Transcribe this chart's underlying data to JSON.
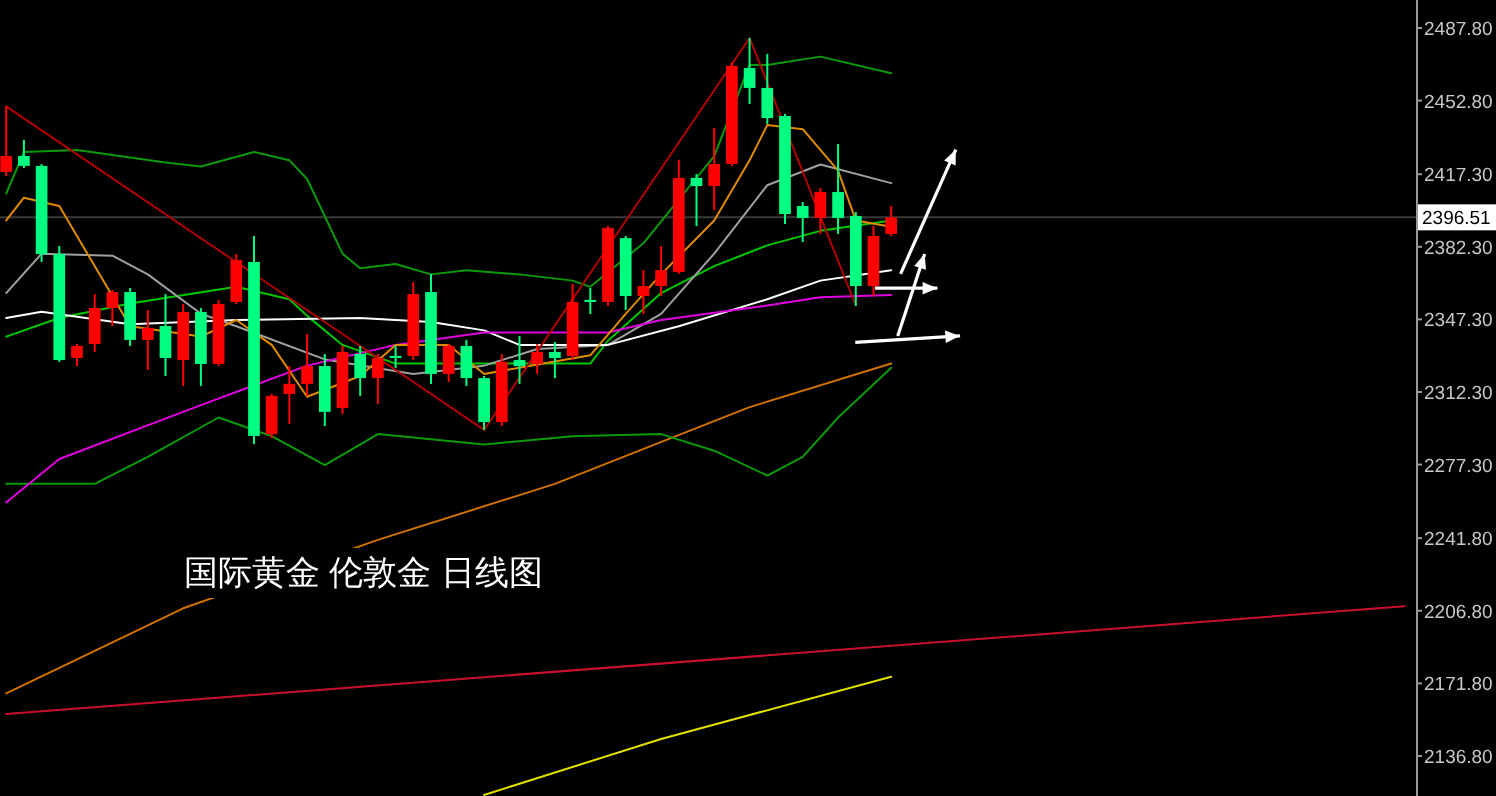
{
  "chart_data": {
    "type": "candlestick",
    "categories": [
      null,
      null,
      null,
      null,
      null,
      null,
      null,
      null,
      null,
      null,
      null,
      null,
      null,
      null,
      null,
      null,
      null,
      null,
      null,
      null,
      null,
      null,
      null,
      null,
      null,
      null,
      null,
      null,
      null,
      null,
      null,
      null,
      null,
      null,
      null,
      null,
      null,
      null,
      null,
      null,
      null,
      null,
      null,
      null,
      null,
      null,
      null,
      null,
      null,
      null,
      null,
      null,
      null,
      null,
      null,
      null,
      null,
      null,
      null,
      null,
      null,
      null,
      null,
      null,
      null,
      null,
      null,
      null,
      null,
      null,
      null,
      null,
      null,
      null,
      null,
      null,
      null,
      null,
      null,
      null
    ],
    "ohlc": [
      [
        2418.4,
        2450.2,
        2416.4,
        2426.1
      ],
      [
        2426.1,
        2433.8,
        2420.3,
        2421.3
      ],
      [
        2421.3,
        2422.2,
        2375.0,
        2378.8
      ],
      [
        2378.8,
        2382.7,
        2326.8,
        2327.7
      ],
      [
        2328.7,
        2335.5,
        2324.8,
        2334.5
      ],
      [
        2335.4,
        2359.5,
        2331.6,
        2352.8
      ],
      [
        2352.8,
        2361.5,
        2344.1,
        2360.5
      ],
      [
        2360.5,
        2362.4,
        2334.5,
        2337.4
      ],
      [
        2337.4,
        2351.8,
        2322.9,
        2343.2
      ],
      [
        2344.1,
        2359.5,
        2320.0,
        2328.7
      ],
      [
        2327.7,
        2354.7,
        2315.2,
        2350.9
      ],
      [
        2350.9,
        2352.8,
        2315.2,
        2325.8
      ],
      [
        2325.8,
        2356.7,
        2324.8,
        2354.7
      ],
      [
        2355.7,
        2378.8,
        2354.7,
        2375.9
      ],
      [
        2375.0,
        2387.5,
        2287.2,
        2291.1
      ],
      [
        2292.0,
        2311.4,
        2290.1,
        2310.4
      ],
      [
        2311.3,
        2324.8,
        2296.9,
        2316.2
      ],
      [
        2316.2,
        2340.3,
        2310.4,
        2324.8
      ],
      [
        2324.8,
        2330.6,
        2295.9,
        2302.7
      ],
      [
        2304.6,
        2334.5,
        2301.7,
        2331.6
      ],
      [
        2330.6,
        2334.5,
        2310.4,
        2319.0
      ],
      [
        2319.0,
        2330.6,
        2306.5,
        2328.7
      ],
      [
        2329.7,
        2334.5,
        2323.9,
        2328.7
      ],
      [
        2329.7,
        2365.3,
        2327.7,
        2359.5
      ],
      [
        2360.5,
        2369.2,
        2316.2,
        2321.0
      ],
      [
        2321.0,
        2335.5,
        2317.1,
        2334.5
      ],
      [
        2334.5,
        2337.4,
        2315.2,
        2319.0
      ],
      [
        2319.0,
        2320.0,
        2294.0,
        2297.8
      ],
      [
        2297.8,
        2330.6,
        2295.9,
        2326.8
      ],
      [
        2327.7,
        2339.3,
        2316.2,
        2324.8
      ],
      [
        2325.8,
        2335.4,
        2321.0,
        2331.6
      ],
      [
        2331.6,
        2336.4,
        2319.0,
        2328.7
      ],
      [
        2329.7,
        2364.4,
        2327.7,
        2355.7
      ],
      [
        2356.7,
        2362.4,
        2349.9,
        2355.7
      ],
      [
        2355.7,
        2392.3,
        2353.8,
        2391.4
      ],
      [
        2386.5,
        2387.5,
        2351.8,
        2358.6
      ],
      [
        2358.6,
        2371.1,
        2349.9,
        2363.4
      ],
      [
        2363.4,
        2382.7,
        2358.6,
        2371.1
      ],
      [
        2370.2,
        2424.2,
        2369.2,
        2415.5
      ],
      [
        2415.5,
        2417.4,
        2392.3,
        2411.6
      ],
      [
        2411.6,
        2439.6,
        2400.0,
        2422.2
      ],
      [
        2422.2,
        2471.4,
        2421.3,
        2469.5
      ],
      [
        2468.5,
        2483.0,
        2451.2,
        2458.9
      ],
      [
        2458.9,
        2475.3,
        2441.5,
        2444.4
      ],
      [
        2445.4,
        2446.4,
        2393.3,
        2398.1
      ],
      [
        2402.0,
        2403.9,
        2384.6,
        2396.2
      ],
      [
        2396.2,
        2410.7,
        2388.5,
        2408.7
      ],
      [
        2408.7,
        2431.9,
        2388.5,
        2396.2
      ],
      [
        2397.2,
        2399.1,
        2353.8,
        2363.4
      ],
      [
        2363.4,
        2392.3,
        2358.6,
        2387.5
      ],
      [
        2388.5,
        2402.0,
        2387.5,
        2396.5
      ],
      null,
      null,
      null,
      null,
      null,
      null,
      null,
      null,
      null,
      null,
      null,
      null,
      null,
      null,
      null,
      null,
      null,
      null,
      null,
      null,
      null,
      null,
      null,
      null,
      null,
      null,
      null,
      null,
      null
    ],
    "colors": [
      "#ff0000",
      "#00ff80",
      "#00ff80",
      "#00ff80",
      "#ff0000",
      "#ff0000",
      "#ff0000",
      "#00ff80",
      "#ff0000",
      "#00ff80",
      "#ff0000",
      "#00ff80",
      "#ff0000",
      "#ff0000",
      "#00ff80",
      "#ff0000",
      "#ff0000",
      "#ff0000",
      "#00ff80",
      "#ff0000",
      "#00ff80",
      "#ff0000",
      "#00ff80",
      "#ff0000",
      "#00ff80",
      "#ff0000",
      "#00ff80",
      "#00ff80",
      "#ff0000",
      "#00ff80",
      "#ff0000",
      "#00ff80",
      "#ff0000",
      "#00ff80",
      "#ff0000",
      "#00ff80",
      "#ff0000",
      "#ff0000",
      "#ff0000",
      "#00ff80",
      "#ff0000",
      "#ff0000",
      "#00ff80",
      "#00ff80",
      "#00ff80",
      "#00ff80",
      "#ff0000",
      "#00ff80",
      "#00ff80",
      "#ff0000",
      "#ff0000",
      null,
      null,
      null,
      null,
      null,
      null,
      null,
      null,
      null,
      null,
      null,
      null,
      null,
      null,
      null,
      null,
      null,
      null,
      null,
      null,
      null,
      null,
      null,
      null,
      null,
      null,
      null,
      null,
      null
    ],
    "series": [
      {
        "type": "line",
        "color": "#c8102e",
        "values": [
          2157,
          null,
          null,
          null,
          null,
          null,
          null,
          null,
          null,
          null,
          null,
          null,
          null,
          null,
          null,
          null,
          null,
          null,
          null,
          null,
          null,
          null,
          null,
          null,
          null,
          null,
          null,
          null,
          null,
          null,
          null,
          null,
          null,
          null,
          null,
          null,
          null,
          null,
          null,
          null,
          null,
          null,
          null,
          null,
          null,
          null,
          null,
          null,
          null,
          null,
          null,
          null,
          null,
          null,
          null,
          null,
          null,
          null,
          null,
          null,
          null,
          null,
          null,
          null,
          null,
          null,
          null,
          null,
          null,
          null,
          null,
          null,
          null,
          null,
          null,
          null,
          null,
          null,
          null,
          2209
        ]
      },
      {
        "type": "line",
        "color": "#e0e000",
        "values": [
          null,
          null,
          null,
          null,
          null,
          null,
          null,
          null,
          null,
          null,
          null,
          null,
          null,
          null,
          null,
          null,
          null,
          null,
          null,
          null,
          null,
          null,
          null,
          null,
          null,
          null,
          null,
          2118,
          null,
          null,
          null,
          null,
          null,
          null,
          null,
          null,
          null,
          2145,
          null,
          null,
          null,
          null,
          null,
          null,
          null,
          null,
          null,
          null,
          null,
          null,
          2175,
          null,
          null,
          null,
          null,
          null,
          null,
          null,
          null,
          null,
          null,
          null,
          null,
          null,
          null,
          null,
          null,
          null,
          null,
          null,
          null,
          null,
          null,
          null,
          null,
          null,
          null,
          null,
          null,
          null
        ]
      },
      {
        "type": "line",
        "color": "#d07000",
        "values": [
          2167,
          null,
          null,
          null,
          null,
          null,
          null,
          null,
          null,
          null,
          2208,
          null,
          null,
          null,
          null,
          null,
          null,
          null,
          null,
          null,
          null,
          2241,
          null,
          null,
          null,
          null,
          null,
          null,
          null,
          null,
          null,
          2268,
          null,
          null,
          null,
          null,
          null,
          null,
          null,
          null,
          null,
          null,
          2305,
          null,
          null,
          null,
          null,
          null,
          null,
          null,
          2326,
          null,
          null,
          null,
          null,
          null,
          null,
          null,
          null,
          null,
          null,
          null,
          null,
          null,
          null,
          null,
          null,
          null,
          null,
          null,
          null,
          null,
          null,
          null,
          null,
          null,
          null,
          null,
          null,
          null
        ]
      },
      {
        "type": "line",
        "color": "#0a9a0a",
        "values": [
          2408,
          2428,
          null,
          null,
          2429,
          null,
          null,
          null,
          null,
          2423,
          null,
          2421,
          null,
          null,
          2428,
          null,
          2424,
          2415,
          null,
          2379,
          2372,
          null,
          2374,
          null,
          2369,
          null,
          2371,
          null,
          null,
          2369,
          null,
          null,
          2366,
          2363,
          null,
          null,
          2384,
          null,
          2405,
          null,
          2426,
          null,
          2470,
          2470,
          null,
          null,
          2474,
          null,
          null,
          null,
          2466,
          null,
          null,
          null,
          null,
          null,
          null,
          null,
          null,
          null,
          null,
          null,
          null,
          null,
          null,
          null,
          null,
          null,
          null,
          null,
          null,
          null,
          null,
          null,
          null,
          null,
          null,
          null,
          null,
          null
        ]
      },
      {
        "type": "line",
        "color": "#0a9a0a",
        "values": [
          2268,
          null,
          null,
          null,
          null,
          2268,
          null,
          null,
          2281,
          null,
          null,
          null,
          2300,
          null,
          null,
          2291,
          null,
          null,
          2277,
          null,
          null,
          2292,
          null,
          null,
          null,
          null,
          null,
          2287,
          null,
          null,
          null,
          null,
          2291,
          null,
          null,
          null,
          null,
          2292,
          null,
          null,
          2284,
          null,
          null,
          2272,
          null,
          2281,
          null,
          2300,
          null,
          null,
          2324,
          null,
          null,
          null,
          null,
          null,
          null,
          null,
          null,
          null,
          null,
          null,
          null,
          null,
          null,
          null,
          null,
          null,
          null,
          null,
          null,
          null,
          null,
          null,
          null,
          null,
          null,
          null,
          null,
          null
        ]
      },
      {
        "type": "line",
        "color": "#00c800",
        "values": [
          2339,
          null,
          null,
          2348,
          null,
          null,
          null,
          2355,
          null,
          null,
          null,
          null,
          null,
          2363,
          null,
          null,
          2357,
          2349,
          null,
          2335,
          null,
          null,
          2326,
          null,
          null,
          null,
          null,
          2326,
          null,
          null,
          null,
          null,
          null,
          2326,
          2337,
          null,
          null,
          2360,
          null,
          null,
          2373,
          null,
          null,
          2383,
          null,
          null,
          2390,
          null,
          null,
          null,
          2395,
          null,
          null,
          null,
          null,
          null,
          null,
          null,
          null,
          null,
          null,
          null,
          null,
          null,
          null,
          null,
          null,
          null,
          null,
          null,
          null,
          null,
          null,
          null,
          null,
          null,
          null,
          null,
          null,
          null
        ]
      },
      {
        "type": "line",
        "color": "#a0a0a0",
        "values": [
          2360,
          null,
          2379,
          null,
          null,
          null,
          2378,
          null,
          2369,
          null,
          null,
          2350,
          null,
          2344,
          null,
          null,
          null,
          null,
          2328,
          null,
          null,
          null,
          null,
          2321,
          null,
          null,
          null,
          2325,
          null,
          null,
          2333,
          null,
          null,
          null,
          2335,
          null,
          null,
          2350,
          null,
          null,
          2379,
          null,
          null,
          2412,
          null,
          null,
          2422,
          null,
          null,
          null,
          2413,
          null,
          null,
          null,
          null,
          null,
          null,
          null,
          null,
          null,
          null,
          null,
          null,
          null,
          null,
          null,
          null,
          null,
          null,
          null,
          null,
          null,
          null,
          null,
          null,
          null,
          null,
          null,
          null,
          null
        ]
      },
      {
        "type": "line",
        "color": "#ffffff",
        "values": [
          2348,
          null,
          2351,
          null,
          null,
          null,
          null,
          2345,
          null,
          null,
          null,
          null,
          null,
          2347,
          null,
          null,
          null,
          null,
          null,
          null,
          2348,
          null,
          null,
          null,
          2346,
          null,
          null,
          2342,
          null,
          2335,
          null,
          null,
          null,
          null,
          2335,
          null,
          null,
          null,
          2344,
          null,
          null,
          null,
          null,
          2357,
          null,
          null,
          2366,
          null,
          null,
          null,
          2371,
          null,
          null,
          null,
          null,
          null,
          null,
          null,
          null,
          null,
          null,
          null,
          null,
          null,
          null,
          null,
          null,
          null,
          null,
          null,
          null,
          null,
          null,
          null,
          null,
          null,
          null,
          null,
          null,
          null
        ]
      },
      {
        "type": "line",
        "color": "#e000e0",
        "values": [
          2259,
          null,
          null,
          2280,
          null,
          null,
          null,
          null,
          null,
          null,
          null,
          2306,
          null,
          null,
          null,
          null,
          null,
          2325,
          null,
          null,
          null,
          null,
          2335,
          null,
          null,
          null,
          null,
          2341,
          null,
          null,
          null,
          null,
          null,
          null,
          2341,
          null,
          null,
          2347,
          null,
          null,
          null,
          null,
          null,
          2354,
          null,
          null,
          2358,
          null,
          null,
          null,
          2359,
          null,
          null,
          null,
          null,
          null,
          null,
          null,
          null,
          null,
          null,
          null,
          null,
          null,
          null,
          null,
          null,
          null,
          null,
          null,
          null,
          null,
          null,
          null,
          null,
          null,
          null,
          null,
          null,
          null
        ]
      },
      {
        "type": "line",
        "color": "#e08a00",
        "values": [
          2395,
          2406,
          null,
          2402,
          null,
          2373,
          null,
          2344,
          null,
          null,
          null,
          2339,
          null,
          2347,
          null,
          2335,
          null,
          2310,
          null,
          null,
          2320,
          null,
          2335,
          null,
          null,
          2335,
          null,
          2321,
          null,
          null,
          null,
          null,
          null,
          2330,
          null,
          2350,
          null,
          2369,
          null,
          null,
          2395,
          null,
          2424,
          2441,
          null,
          2439,
          null,
          2419,
          2395,
          null,
          2392,
          null,
          null,
          null,
          null,
          null,
          null,
          null,
          null,
          null,
          null,
          null,
          null,
          null,
          null,
          null,
          null,
          null,
          null,
          null,
          null,
          null,
          null,
          null,
          null,
          null,
          null,
          null,
          null,
          null
        ]
      },
      {
        "type": "line",
        "color": "#b00000",
        "values": [
          2450,
          null,
          null,
          null,
          null,
          null,
          null,
          null,
          null,
          null,
          null,
          null,
          null,
          null,
          null,
          null,
          null,
          null,
          null,
          null,
          null,
          null,
          null,
          null,
          null,
          null,
          null,
          2294,
          null,
          null,
          null,
          null,
          null,
          null,
          null,
          null,
          null,
          null,
          null,
          null,
          null,
          null,
          2483,
          null,
          null,
          null,
          null,
          null,
          2354,
          null,
          null,
          null,
          null,
          null,
          null,
          null,
          null,
          null,
          null,
          null,
          null,
          null,
          null,
          null,
          null,
          null,
          null,
          null,
          null,
          null,
          null,
          null,
          null,
          null,
          null,
          null,
          null,
          null,
          null,
          null
        ]
      }
    ],
    "ylim": [
      2117.5,
      2501.3
    ],
    "yticks": [
      {
        "value": 2487.8,
        "label": "2487.80"
      },
      {
        "value": 2452.8,
        "label": "2452.80"
      },
      {
        "value": 2417.3,
        "label": "2417.30"
      },
      {
        "value": 2382.3,
        "label": "2382.30"
      },
      {
        "value": 2347.3,
        "label": "2347.30"
      },
      {
        "value": 2312.3,
        "label": "2312.30"
      },
      {
        "value": 2277.3,
        "label": "2277.30"
      },
      {
        "value": 2241.8,
        "label": "2241.80"
      },
      {
        "value": 2206.8,
        "label": "2206.80"
      },
      {
        "value": 2171.8,
        "label": "2171.80"
      },
      {
        "value": 2136.8,
        "label": "2136.80"
      }
    ],
    "ref_lines": [
      {
        "axis": "y",
        "value": 2396.51,
        "label": "2396.51",
        "color": "#3a3a3a"
      }
    ],
    "tick_labels": "y",
    "grid": false,
    "annotations": [
      "国际黄金 伦敦金 日线图"
    ]
  }
}
